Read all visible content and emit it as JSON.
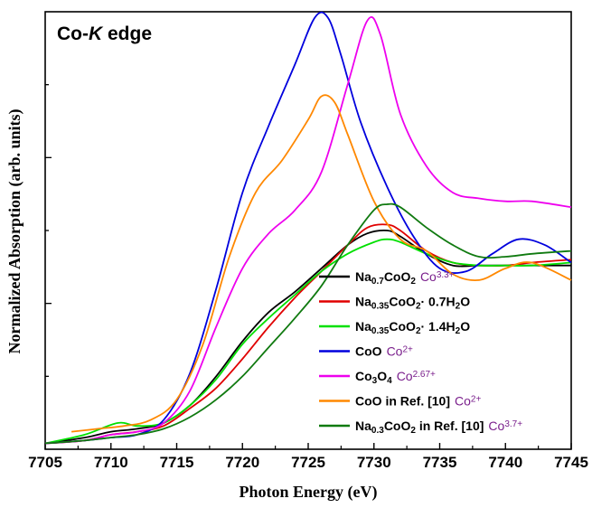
{
  "chart_data": {
    "type": "line",
    "title": "Co-K edge",
    "title_parts": {
      "a": "Co-",
      "b": "K",
      "c": " edge"
    },
    "xlabel": "Photon Energy (eV)",
    "ylabel": "Normalized Absorption (arb. units)",
    "xlim": [
      7705,
      7745
    ],
    "ylim": [
      0,
      1.5
    ],
    "xticks": [
      "7705",
      "7710",
      "7715",
      "7720",
      "7725",
      "7730",
      "7735",
      "7740",
      "7745"
    ],
    "legend_placement": "bottom-right",
    "series": [
      {
        "name": "Na0.7CoO2 Co3.3+",
        "legend": {
          "parts": [
            [
              "Na",
              ""
            ],
            [
              "0.7",
              "sub"
            ],
            [
              "CoO",
              ""
            ],
            [
              "2",
              "sub"
            ]
          ],
          "ox": [
            [
              "Co",
              ""
            ],
            [
              "3.3+",
              "sup"
            ]
          ]
        },
        "color": "#000000",
        "x": [
          7705,
          7708,
          7710,
          7712,
          7714,
          7716,
          7718,
          7720,
          7722,
          7724,
          7726,
          7728,
          7729.5,
          7731,
          7732,
          7734,
          7736,
          7738,
          7740,
          7742,
          7745
        ],
        "y": [
          0.02,
          0.04,
          0.06,
          0.07,
          0.09,
          0.15,
          0.25,
          0.37,
          0.47,
          0.54,
          0.62,
          0.7,
          0.74,
          0.75,
          0.73,
          0.67,
          0.63,
          0.63,
          0.63,
          0.63,
          0.63
        ]
      },
      {
        "name": "Na0.35CoO2· 0.7H2O",
        "legend": {
          "parts": [
            [
              "Na",
              ""
            ],
            [
              "0.35",
              "sub"
            ],
            [
              "CoO",
              ""
            ],
            [
              "2",
              "sub"
            ],
            [
              "·  0.7H",
              ""
            ],
            [
              "2",
              "sub"
            ],
            [
              "O",
              ""
            ]
          ],
          "ox": []
        },
        "color": "#e00000",
        "x": [
          7705,
          7708,
          7710,
          7712,
          7714,
          7716,
          7718,
          7720,
          7722,
          7724,
          7726,
          7728,
          7729.5,
          7731,
          7732,
          7734,
          7736,
          7738,
          7740,
          7742,
          7745
        ],
        "y": [
          0.02,
          0.03,
          0.05,
          0.06,
          0.08,
          0.14,
          0.21,
          0.31,
          0.42,
          0.52,
          0.61,
          0.7,
          0.76,
          0.77,
          0.75,
          0.68,
          0.64,
          0.63,
          0.63,
          0.64,
          0.65
        ]
      },
      {
        "name": "Na0.35CoO2· 1.4H2O",
        "legend": {
          "parts": [
            [
              "Na",
              ""
            ],
            [
              "0.35",
              "sub"
            ],
            [
              "CoO",
              ""
            ],
            [
              "2",
              "sub"
            ],
            [
              "·  1.4H",
              ""
            ],
            [
              "2",
              "sub"
            ],
            [
              "O",
              ""
            ]
          ],
          "ox": []
        },
        "color": "#00e000",
        "x": [
          7705,
          7708,
          7710.5,
          7712,
          7714,
          7716,
          7718,
          7720,
          7722,
          7724,
          7726,
          7728,
          7730,
          7731,
          7732,
          7734,
          7736,
          7738,
          7740,
          7742,
          7745
        ],
        "y": [
          0.02,
          0.05,
          0.09,
          0.08,
          0.09,
          0.15,
          0.24,
          0.36,
          0.45,
          0.53,
          0.61,
          0.67,
          0.71,
          0.72,
          0.71,
          0.67,
          0.64,
          0.63,
          0.63,
          0.63,
          0.64
        ]
      },
      {
        "name": "CoO Co2+",
        "legend": {
          "parts": [
            [
              "CoO",
              ""
            ]
          ],
          "ox": [
            [
              "Co",
              ""
            ],
            [
              "2+",
              "sup"
            ]
          ]
        },
        "color": "#0000dd",
        "x": [
          7705,
          7708,
          7710,
          7712,
          7714,
          7716,
          7718,
          7720,
          7722,
          7724,
          7725.5,
          7726.5,
          7727.5,
          7729,
          7731,
          7733,
          7735,
          7737,
          7739,
          7741,
          7743,
          7745
        ],
        "y": [
          0.02,
          0.03,
          0.04,
          0.05,
          0.1,
          0.26,
          0.55,
          0.88,
          1.11,
          1.32,
          1.48,
          1.48,
          1.35,
          1.12,
          0.9,
          0.73,
          0.62,
          0.61,
          0.67,
          0.72,
          0.7,
          0.64
        ]
      },
      {
        "name": "Co3O4 Co2.67+",
        "legend": {
          "parts": [
            [
              "Co",
              ""
            ],
            [
              "3",
              "sub"
            ],
            [
              "O",
              ""
            ],
            [
              "4",
              "sub"
            ]
          ],
          "ox": [
            [
              "Co",
              ""
            ],
            [
              "2.67+",
              "sup"
            ]
          ]
        },
        "color": "#ee00ee",
        "x": [
          7705,
          7708,
          7710,
          7712,
          7714,
          7716,
          7718,
          7720,
          7722,
          7724,
          7726,
          7728,
          7729.5,
          7730.5,
          7732,
          7734,
          7736,
          7738,
          7740,
          7742,
          7745
        ],
        "y": [
          0.02,
          0.03,
          0.05,
          0.06,
          0.09,
          0.2,
          0.42,
          0.62,
          0.74,
          0.82,
          0.95,
          1.25,
          1.47,
          1.42,
          1.15,
          0.97,
          0.88,
          0.86,
          0.85,
          0.85,
          0.83
        ]
      },
      {
        "name": "CoO in Ref. [10] Co2+",
        "legend": {
          "parts": [
            [
              "CoO in Ref. [10]",
              ""
            ]
          ],
          "ox": [
            [
              "Co",
              ""
            ],
            [
              "2+",
              "sup"
            ]
          ]
        },
        "color": "#ff8800",
        "x": [
          7707,
          7709,
          7711,
          7713,
          7715,
          7717,
          7719,
          7721,
          7723,
          7725,
          7726,
          7727,
          7728,
          7730,
          7732,
          7734,
          7736,
          7738,
          7740,
          7742,
          7745
        ],
        "y": [
          0.06,
          0.07,
          0.08,
          0.1,
          0.17,
          0.36,
          0.66,
          0.88,
          0.99,
          1.13,
          1.21,
          1.19,
          1.08,
          0.85,
          0.72,
          0.68,
          0.6,
          0.58,
          0.62,
          0.64,
          0.58
        ]
      },
      {
        "name": "Na0.3CoO2 in Ref. [10] Co3.7+",
        "legend": {
          "parts": [
            [
              "Na",
              ""
            ],
            [
              "0.3",
              "sub"
            ],
            [
              "CoO",
              ""
            ],
            [
              "2",
              "sub"
            ],
            [
              " in Ref. [10]",
              ""
            ]
          ],
          "ox": [
            [
              "Co",
              ""
            ],
            [
              "3.7+",
              "sup"
            ]
          ]
        },
        "color": "#107a10",
        "x": [
          7705,
          7708,
          7710,
          7712,
          7714,
          7716,
          7718,
          7720,
          7722,
          7724,
          7726,
          7728,
          7730,
          7731,
          7732,
          7734,
          7736,
          7738,
          7740,
          7742,
          7745
        ],
        "y": [
          0.02,
          0.03,
          0.04,
          0.05,
          0.07,
          0.11,
          0.17,
          0.25,
          0.35,
          0.45,
          0.56,
          0.7,
          0.82,
          0.84,
          0.83,
          0.76,
          0.7,
          0.66,
          0.66,
          0.67,
          0.68
        ]
      }
    ]
  }
}
